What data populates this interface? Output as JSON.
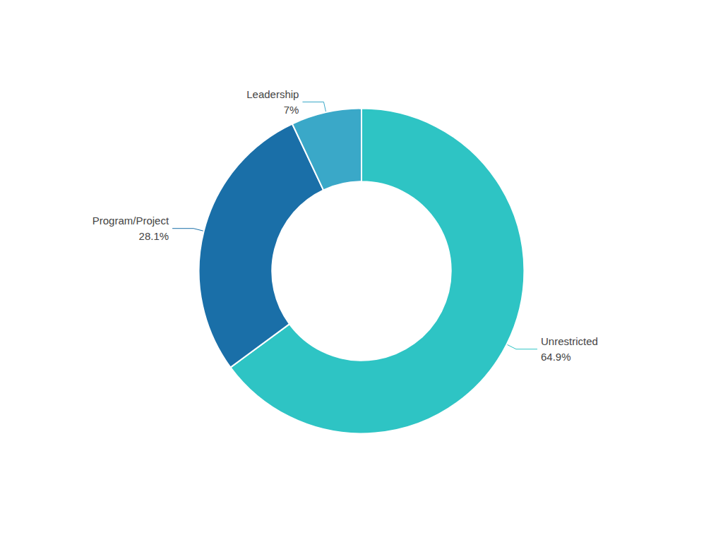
{
  "chart_data": {
    "type": "pie",
    "categories": [
      "Unrestricted",
      "Program/Project",
      "Leadership"
    ],
    "values": [
      64.9,
      28.1,
      7.0
    ],
    "value_labels": [
      "64.9%",
      "28.1%",
      "7%"
    ],
    "data_labels": true,
    "colors": [
      "#2ec4c4",
      "#1a6fa8",
      "#3aa8c8"
    ]
  }
}
